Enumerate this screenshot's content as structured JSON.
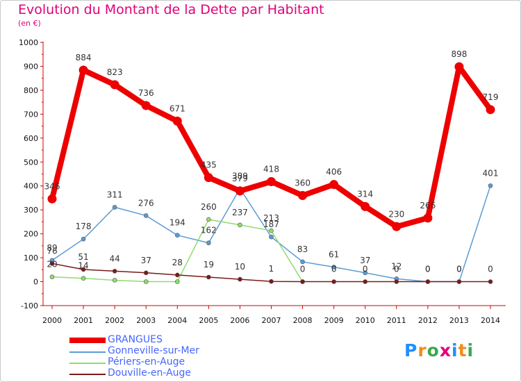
{
  "chart_data": {
    "type": "line",
    "title": "Evolution du Montant de la Dette par Habitant",
    "subtitle": "(en €)",
    "x": [
      "2000",
      "2001",
      "2002",
      "2003",
      "2004",
      "2005",
      "2006",
      "2007",
      "2008",
      "2009",
      "2010",
      "2011",
      "2012",
      "2013",
      "2014"
    ],
    "ylim": [
      -100,
      1000
    ],
    "yticks": [
      "-100",
      "0",
      "100",
      "200",
      "300",
      "400",
      "500",
      "600",
      "700",
      "800",
      "900",
      "1000"
    ],
    "grid": false,
    "legend_position": "bottom-left",
    "series": [
      {
        "name": "GRANGUES",
        "color": "#ee0000",
        "values": [
          346,
          884,
          823,
          736,
          671,
          435,
          379,
          418,
          360,
          406,
          314,
          230,
          266,
          898,
          719
        ],
        "labels": [
          "346",
          "884",
          "823",
          "736",
          "671",
          "435",
          "379",
          "418",
          "360",
          "406",
          "314",
          "230",
          "266",
          "898",
          "719"
        ]
      },
      {
        "name": "Gonneville-sur-Mer",
        "color": "#5a9bd5",
        "values": [
          89,
          178,
          311,
          276,
          194,
          162,
          389,
          187,
          83,
          61,
          37,
          12,
          0,
          0,
          401
        ],
        "labels": [
          "89",
          "178",
          "311",
          "276",
          "194",
          "162",
          "389",
          "187",
          "83",
          "61",
          "37",
          "12",
          "0",
          "0",
          "401"
        ]
      },
      {
        "name": "Périers-en-Auge",
        "color": "#8fdc6c",
        "values": [
          20,
          14,
          6,
          0,
          0,
          260,
          237,
          213,
          0,
          null,
          null,
          null,
          null,
          null,
          null
        ],
        "labels": [
          "20",
          "14",
          "",
          "",
          "",
          "260",
          "237",
          "213",
          "",
          "",
          "",
          "",
          "",
          "",
          ""
        ]
      },
      {
        "name": "Douville-en-Auge",
        "color": "#7a1a1a",
        "values": [
          76,
          51,
          44,
          37,
          28,
          19,
          10,
          1,
          0,
          0,
          0,
          0,
          0,
          0,
          0
        ],
        "labels": [
          "76",
          "51",
          "44",
          "37",
          "28",
          "19",
          "10",
          "1",
          "0",
          "0",
          "0",
          "0",
          "0",
          "0",
          "0"
        ]
      }
    ]
  },
  "branding": {
    "logo_letters": [
      "P",
      "r",
      "o",
      "x",
      "i",
      "t",
      "i"
    ],
    "logo_colors": [
      "#1e90ff",
      "#f08c1a",
      "#3aa84a",
      "#e0007a",
      "#1e90ff",
      "#f08c1a",
      "#3aa84a"
    ]
  }
}
